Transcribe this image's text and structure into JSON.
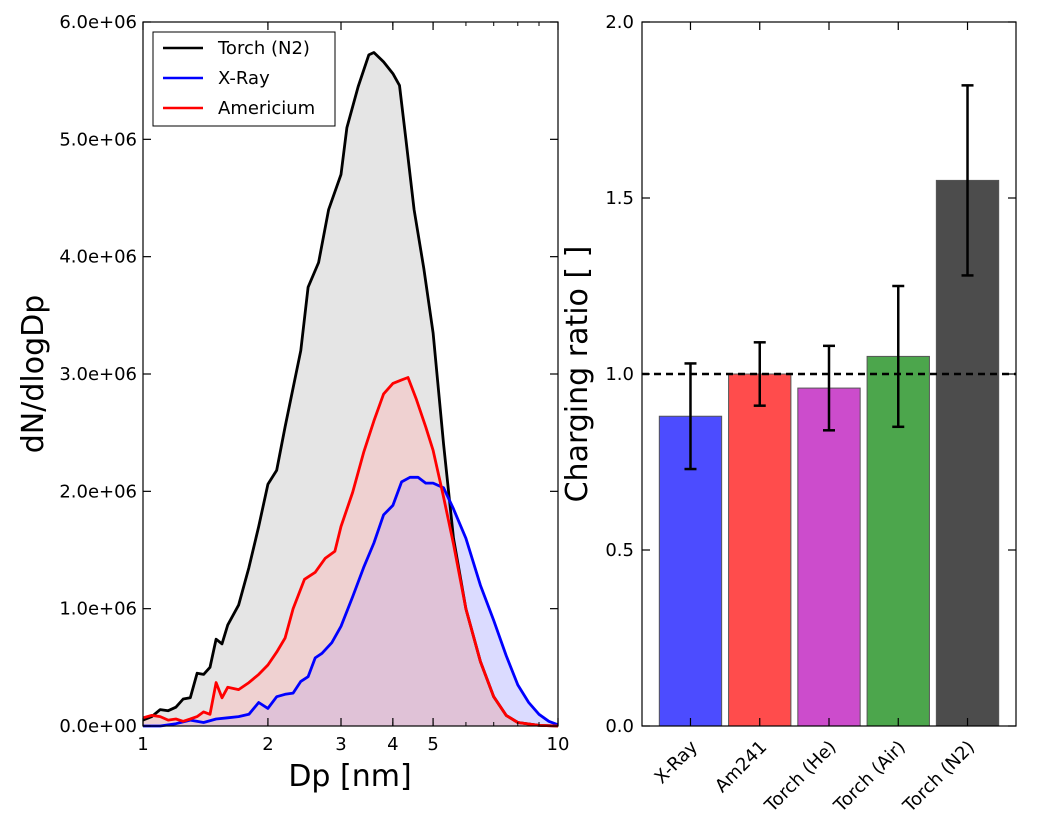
{
  "chart_data": [
    {
      "type": "area",
      "title": "",
      "xlabel": "Dp [nm]",
      "ylabel": "dN/dlogDp",
      "x_scale": "log",
      "xlim": [
        1,
        10
      ],
      "ylim": [
        0,
        6000000
      ],
      "x_ticks": [
        {
          "value": 1,
          "label": "1"
        },
        {
          "value": 2,
          "label": "2"
        },
        {
          "value": 3,
          "label": "3"
        },
        {
          "value": 4,
          "label": "4"
        },
        {
          "value": 5,
          "label": "5"
        },
        {
          "value": 10,
          "label": "10"
        }
      ],
      "y_ticks": [
        {
          "value": 0,
          "label": "0.0e+00"
        },
        {
          "value": 1000000,
          "label": "1.0e+06"
        },
        {
          "value": 2000000,
          "label": "2.0e+06"
        },
        {
          "value": 3000000,
          "label": "3.0e+06"
        },
        {
          "value": 4000000,
          "label": "4.0e+06"
        },
        {
          "value": 5000000,
          "label": "5.0e+06"
        },
        {
          "value": 6000000,
          "label": "6.0e+06"
        }
      ],
      "legend_position": "top-left",
      "series": [
        {
          "name": "Torch (N2)",
          "color": "#000000",
          "fill": "#bfbfbf",
          "points": [
            [
              1.0,
              50000
            ],
            [
              1.05,
              80000
            ],
            [
              1.1,
              140000
            ],
            [
              1.15,
              130000
            ],
            [
              1.2,
              160000
            ],
            [
              1.25,
              230000
            ],
            [
              1.3,
              240000
            ],
            [
              1.35,
              450000
            ],
            [
              1.4,
              440000
            ],
            [
              1.45,
              500000
            ],
            [
              1.5,
              740000
            ],
            [
              1.55,
              700000
            ],
            [
              1.6,
              860000
            ],
            [
              1.7,
              1030000
            ],
            [
              1.8,
              1350000
            ],
            [
              1.9,
              1700000
            ],
            [
              2.0,
              2060000
            ],
            [
              2.1,
              2180000
            ],
            [
              2.2,
              2550000
            ],
            [
              2.4,
              3200000
            ],
            [
              2.5,
              3740000
            ],
            [
              2.65,
              3950000
            ],
            [
              2.8,
              4400000
            ],
            [
              3.0,
              4700000
            ],
            [
              3.1,
              5100000
            ],
            [
              3.3,
              5450000
            ],
            [
              3.5,
              5720000
            ],
            [
              3.6,
              5740000
            ],
            [
              3.8,
              5660000
            ],
            [
              4.0,
              5560000
            ],
            [
              4.15,
              5460000
            ],
            [
              4.3,
              5000000
            ],
            [
              4.5,
              4400000
            ],
            [
              4.75,
              3900000
            ],
            [
              5.0,
              3350000
            ],
            [
              5.3,
              2400000
            ],
            [
              5.6,
              1600000
            ],
            [
              6.0,
              1000000
            ],
            [
              6.5,
              550000
            ],
            [
              7.0,
              250000
            ],
            [
              7.5,
              90000
            ],
            [
              8.0,
              30000
            ],
            [
              9.0,
              5000
            ],
            [
              10.0,
              0
            ]
          ]
        },
        {
          "name": "X-Ray",
          "color": "#0000ff",
          "fill": "#a6a6ff",
          "points": [
            [
              1.0,
              0
            ],
            [
              1.1,
              0
            ],
            [
              1.2,
              20000
            ],
            [
              1.3,
              50000
            ],
            [
              1.4,
              30000
            ],
            [
              1.5,
              60000
            ],
            [
              1.6,
              70000
            ],
            [
              1.7,
              80000
            ],
            [
              1.8,
              100000
            ],
            [
              1.9,
              200000
            ],
            [
              2.0,
              150000
            ],
            [
              2.1,
              250000
            ],
            [
              2.2,
              270000
            ],
            [
              2.3,
              280000
            ],
            [
              2.4,
              380000
            ],
            [
              2.5,
              420000
            ],
            [
              2.6,
              580000
            ],
            [
              2.7,
              620000
            ],
            [
              2.85,
              710000
            ],
            [
              3.0,
              850000
            ],
            [
              3.2,
              1100000
            ],
            [
              3.4,
              1350000
            ],
            [
              3.6,
              1560000
            ],
            [
              3.8,
              1800000
            ],
            [
              4.0,
              1880000
            ],
            [
              4.2,
              2080000
            ],
            [
              4.4,
              2120000
            ],
            [
              4.6,
              2120000
            ],
            [
              4.8,
              2070000
            ],
            [
              5.0,
              2070000
            ],
            [
              5.3,
              2030000
            ],
            [
              5.6,
              1850000
            ],
            [
              6.0,
              1600000
            ],
            [
              6.5,
              1200000
            ],
            [
              7.0,
              900000
            ],
            [
              7.5,
              600000
            ],
            [
              8.0,
              350000
            ],
            [
              8.5,
              200000
            ],
            [
              9.0,
              100000
            ],
            [
              9.5,
              40000
            ],
            [
              10.0,
              10000
            ]
          ]
        },
        {
          "name": "Americium",
          "color": "#ff0000",
          "fill": "#ffb3b3",
          "points": [
            [
              1.0,
              70000
            ],
            [
              1.05,
              90000
            ],
            [
              1.1,
              80000
            ],
            [
              1.15,
              50000
            ],
            [
              1.2,
              60000
            ],
            [
              1.25,
              40000
            ],
            [
              1.3,
              60000
            ],
            [
              1.35,
              80000
            ],
            [
              1.4,
              120000
            ],
            [
              1.45,
              100000
            ],
            [
              1.5,
              370000
            ],
            [
              1.55,
              240000
            ],
            [
              1.6,
              330000
            ],
            [
              1.7,
              310000
            ],
            [
              1.8,
              370000
            ],
            [
              1.9,
              440000
            ],
            [
              2.0,
              520000
            ],
            [
              2.1,
              630000
            ],
            [
              2.2,
              750000
            ],
            [
              2.3,
              1000000
            ],
            [
              2.45,
              1250000
            ],
            [
              2.6,
              1310000
            ],
            [
              2.75,
              1430000
            ],
            [
              2.9,
              1490000
            ],
            [
              3.0,
              1700000
            ],
            [
              3.2,
              1990000
            ],
            [
              3.4,
              2330000
            ],
            [
              3.6,
              2600000
            ],
            [
              3.8,
              2830000
            ],
            [
              4.0,
              2920000
            ],
            [
              4.2,
              2950000
            ],
            [
              4.35,
              2970000
            ],
            [
              4.55,
              2790000
            ],
            [
              4.8,
              2550000
            ],
            [
              5.0,
              2350000
            ],
            [
              5.3,
              1950000
            ],
            [
              5.6,
              1550000
            ],
            [
              6.0,
              1000000
            ],
            [
              6.5,
              550000
            ],
            [
              7.0,
              250000
            ],
            [
              7.5,
              90000
            ],
            [
              8.0,
              30000
            ],
            [
              9.0,
              5000
            ],
            [
              10.0,
              0
            ]
          ]
        }
      ]
    },
    {
      "type": "bar",
      "title": "",
      "xlabel": "",
      "ylabel": "Charging ratio [ ]",
      "ylim": [
        0,
        2
      ],
      "y_ticks": [
        {
          "value": 0,
          "label": "0.0"
        },
        {
          "value": 0.5,
          "label": "0.5"
        },
        {
          "value": 1,
          "label": "1.0"
        },
        {
          "value": 1.5,
          "label": "1.5"
        },
        {
          "value": 2,
          "label": "2.0"
        }
      ],
      "reference_line": {
        "value": 1.0,
        "style": "dashed",
        "color": "#000000"
      },
      "categories": [
        "X-Ray",
        "Am241",
        "Torch (He)",
        "Torch (Air)",
        "Torch (N2)"
      ],
      "values": [
        0.88,
        1.0,
        0.96,
        1.05,
        1.55
      ],
      "error_low": [
        0.73,
        0.91,
        0.84,
        0.85,
        1.28
      ],
      "error_high": [
        1.03,
        1.09,
        1.08,
        1.25,
        1.82
      ],
      "colors": [
        "#4c4cff",
        "#ff4c4c",
        "#cc4ccc",
        "#4ca64c",
        "#4c4c4c"
      ]
    }
  ]
}
